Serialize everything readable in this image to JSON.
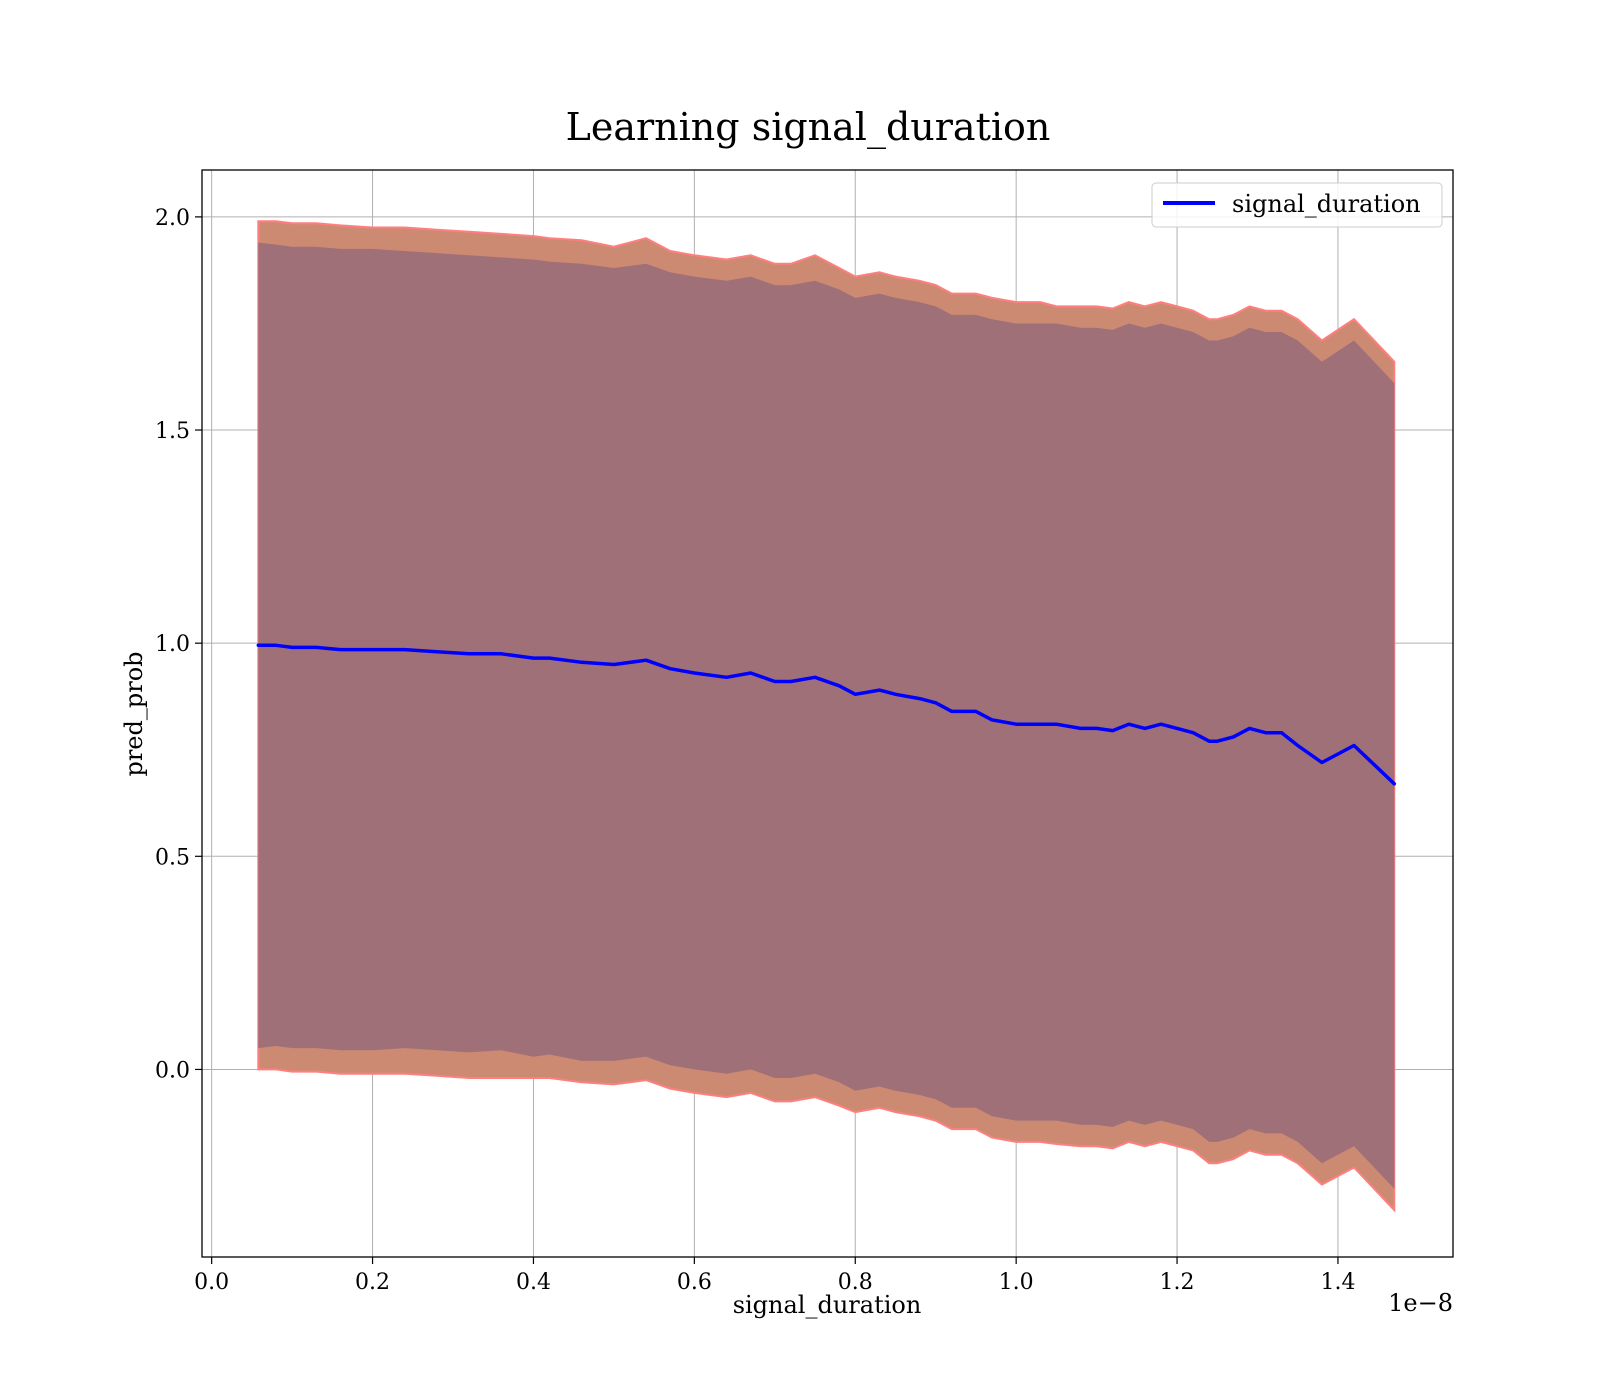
{
  "chart_data": {
    "type": "line",
    "title": "Learning signal_duration",
    "xlabel": "signal_duration",
    "ylabel": "pred_prob",
    "x_offset_label": "1e−8",
    "xlim": [
      -0.012,
      1.543
    ],
    "ylim": [
      -0.44,
      2.11
    ],
    "x_ticks": [
      0.0,
      0.2,
      0.4,
      0.6,
      0.8,
      1.0,
      1.2,
      1.4
    ],
    "x_tick_labels": [
      "0.0",
      "0.2",
      "0.4",
      "0.6",
      "0.8",
      "1.0",
      "1.2",
      "1.4"
    ],
    "y_ticks": [
      0.0,
      0.5,
      1.0,
      1.5,
      2.0
    ],
    "y_tick_labels": [
      "0.0",
      "0.5",
      "1.0",
      "1.5",
      "2.0"
    ],
    "grid": true,
    "legend_position": "top-right",
    "colors": {
      "line": "#0000ff",
      "outer_band": "#cd8a72",
      "outer_band_edge": "#ff7f7f",
      "inner_band": "#a07078"
    },
    "series": [
      {
        "name": "signal_duration",
        "x": [
          0.058,
          0.08,
          0.1,
          0.13,
          0.16,
          0.2,
          0.24,
          0.28,
          0.32,
          0.36,
          0.4,
          0.42,
          0.46,
          0.5,
          0.54,
          0.57,
          0.6,
          0.64,
          0.67,
          0.7,
          0.72,
          0.75,
          0.78,
          0.8,
          0.83,
          0.85,
          0.88,
          0.9,
          0.92,
          0.95,
          0.97,
          1.0,
          1.03,
          1.05,
          1.08,
          1.1,
          1.12,
          1.14,
          1.16,
          1.18,
          1.2,
          1.22,
          1.24,
          1.25,
          1.27,
          1.29,
          1.31,
          1.33,
          1.35,
          1.38,
          1.42,
          1.47
        ],
        "y": [
          0.995,
          0.995,
          0.99,
          0.99,
          0.985,
          0.985,
          0.985,
          0.98,
          0.975,
          0.975,
          0.965,
          0.965,
          0.955,
          0.95,
          0.96,
          0.94,
          0.93,
          0.92,
          0.93,
          0.91,
          0.91,
          0.92,
          0.9,
          0.88,
          0.89,
          0.88,
          0.87,
          0.86,
          0.84,
          0.84,
          0.82,
          0.81,
          0.81,
          0.81,
          0.8,
          0.8,
          0.795,
          0.81,
          0.8,
          0.81,
          0.8,
          0.79,
          0.77,
          0.77,
          0.78,
          0.8,
          0.79,
          0.79,
          0.76,
          0.72,
          0.76,
          0.67
        ],
        "band_inner_upper": [
          1.94,
          1.935,
          1.93,
          1.93,
          1.925,
          1.925,
          1.92,
          1.915,
          1.91,
          1.905,
          1.9,
          1.895,
          1.89,
          1.88,
          1.89,
          1.87,
          1.86,
          1.85,
          1.86,
          1.84,
          1.84,
          1.85,
          1.83,
          1.81,
          1.82,
          1.81,
          1.8,
          1.79,
          1.77,
          1.77,
          1.76,
          1.75,
          1.75,
          1.75,
          1.74,
          1.74,
          1.735,
          1.75,
          1.74,
          1.75,
          1.74,
          1.73,
          1.71,
          1.71,
          1.72,
          1.74,
          1.73,
          1.73,
          1.71,
          1.66,
          1.71,
          1.61
        ],
        "band_inner_lower": [
          0.05,
          0.055,
          0.05,
          0.05,
          0.045,
          0.045,
          0.05,
          0.045,
          0.04,
          0.045,
          0.03,
          0.035,
          0.02,
          0.02,
          0.03,
          0.01,
          0.0,
          -0.01,
          0.0,
          -0.02,
          -0.02,
          -0.01,
          -0.03,
          -0.05,
          -0.04,
          -0.05,
          -0.06,
          -0.07,
          -0.09,
          -0.09,
          -0.11,
          -0.12,
          -0.12,
          -0.12,
          -0.13,
          -0.13,
          -0.135,
          -0.12,
          -0.13,
          -0.12,
          -0.13,
          -0.14,
          -0.17,
          -0.17,
          -0.16,
          -0.14,
          -0.15,
          -0.15,
          -0.17,
          -0.22,
          -0.18,
          -0.28
        ],
        "band_outer_upper": [
          1.99,
          1.99,
          1.985,
          1.985,
          1.98,
          1.975,
          1.975,
          1.97,
          1.965,
          1.96,
          1.955,
          1.95,
          1.945,
          1.93,
          1.95,
          1.92,
          1.91,
          1.9,
          1.91,
          1.89,
          1.89,
          1.91,
          1.88,
          1.86,
          1.87,
          1.86,
          1.85,
          1.84,
          1.82,
          1.82,
          1.81,
          1.8,
          1.8,
          1.79,
          1.79,
          1.79,
          1.785,
          1.8,
          1.79,
          1.8,
          1.79,
          1.78,
          1.76,
          1.76,
          1.77,
          1.79,
          1.78,
          1.78,
          1.76,
          1.71,
          1.76,
          1.66
        ],
        "band_outer_lower": [
          0.0,
          0.0,
          -0.005,
          -0.005,
          -0.01,
          -0.01,
          -0.01,
          -0.015,
          -0.02,
          -0.02,
          -0.02,
          -0.02,
          -0.03,
          -0.035,
          -0.025,
          -0.045,
          -0.055,
          -0.065,
          -0.055,
          -0.075,
          -0.075,
          -0.065,
          -0.085,
          -0.1,
          -0.09,
          -0.1,
          -0.11,
          -0.12,
          -0.14,
          -0.14,
          -0.16,
          -0.17,
          -0.17,
          -0.175,
          -0.18,
          -0.18,
          -0.185,
          -0.17,
          -0.18,
          -0.17,
          -0.18,
          -0.19,
          -0.22,
          -0.22,
          -0.21,
          -0.19,
          -0.2,
          -0.2,
          -0.22,
          -0.27,
          -0.23,
          -0.33
        ]
      }
    ]
  }
}
